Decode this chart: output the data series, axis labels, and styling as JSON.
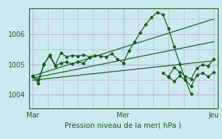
{
  "xlabel": "Pression niveau de la mer( hPa )",
  "background_color": "#cce8f0",
  "grid_color": "#c0a8c8",
  "line_color": "#1a5c1a",
  "xtick_labels": [
    "Mar",
    "Mer",
    "Jeu"
  ],
  "xtick_positions": [
    0,
    48,
    96
  ],
  "ytick_labels": [
    "1004",
    "1005",
    "1006"
  ],
  "ytick_positions": [
    1004,
    1005,
    1006
  ],
  "ylim": [
    1003.55,
    1006.85
  ],
  "xlim": [
    -2,
    98
  ],
  "series_no_marker": [
    {
      "x": [
        0,
        96
      ],
      "y": [
        1004.62,
        1006.5
      ]
    },
    {
      "x": [
        0,
        96
      ],
      "y": [
        1004.55,
        1005.75
      ]
    },
    {
      "x": [
        0,
        96
      ],
      "y": [
        1004.48,
        1005.12
      ]
    }
  ],
  "series_marker": [
    {
      "x": [
        0,
        3,
        6,
        9,
        12,
        15,
        18,
        21,
        24,
        27,
        30,
        33,
        36,
        39,
        42,
        45,
        48,
        51,
        54,
        57,
        60,
        63,
        66,
        69,
        72,
        75,
        78,
        81,
        84
      ],
      "y": [
        1004.62,
        1004.5,
        1005.0,
        1005.32,
        1004.98,
        1005.38,
        1005.25,
        1005.3,
        1005.28,
        1005.32,
        1005.25,
        1005.3,
        1005.28,
        1005.25,
        1005.35,
        1005.18,
        1005.05,
        1005.45,
        1005.75,
        1006.05,
        1006.32,
        1006.55,
        1006.72,
        1006.65,
        1006.18,
        1005.58,
        1005.02,
        1004.48,
        1004.02
      ]
    },
    {
      "x": [
        69,
        72,
        75,
        78,
        81,
        84,
        87,
        90,
        93,
        96
      ],
      "y": [
        1004.72,
        1004.58,
        1004.45,
        1004.62,
        1004.48,
        1004.28,
        1004.65,
        1004.72,
        1004.6,
        1004.75
      ]
    },
    {
      "x": [
        72,
        75,
        78,
        81,
        84,
        87,
        90,
        93,
        96
      ],
      "y": [
        1004.6,
        1004.9,
        1004.75,
        1004.6,
        1004.52,
        1004.88,
        1005.0,
        1004.95,
        1005.18
      ]
    },
    {
      "x": [
        0,
        3,
        6,
        9,
        12,
        15,
        18,
        21,
        24,
        27,
        30
      ],
      "y": [
        1004.6,
        1004.38,
        1005.02,
        1005.28,
        1004.95,
        1005.05,
        1005.08,
        1005.02,
        1005.08,
        1005.05,
        1005.22
      ]
    }
  ]
}
